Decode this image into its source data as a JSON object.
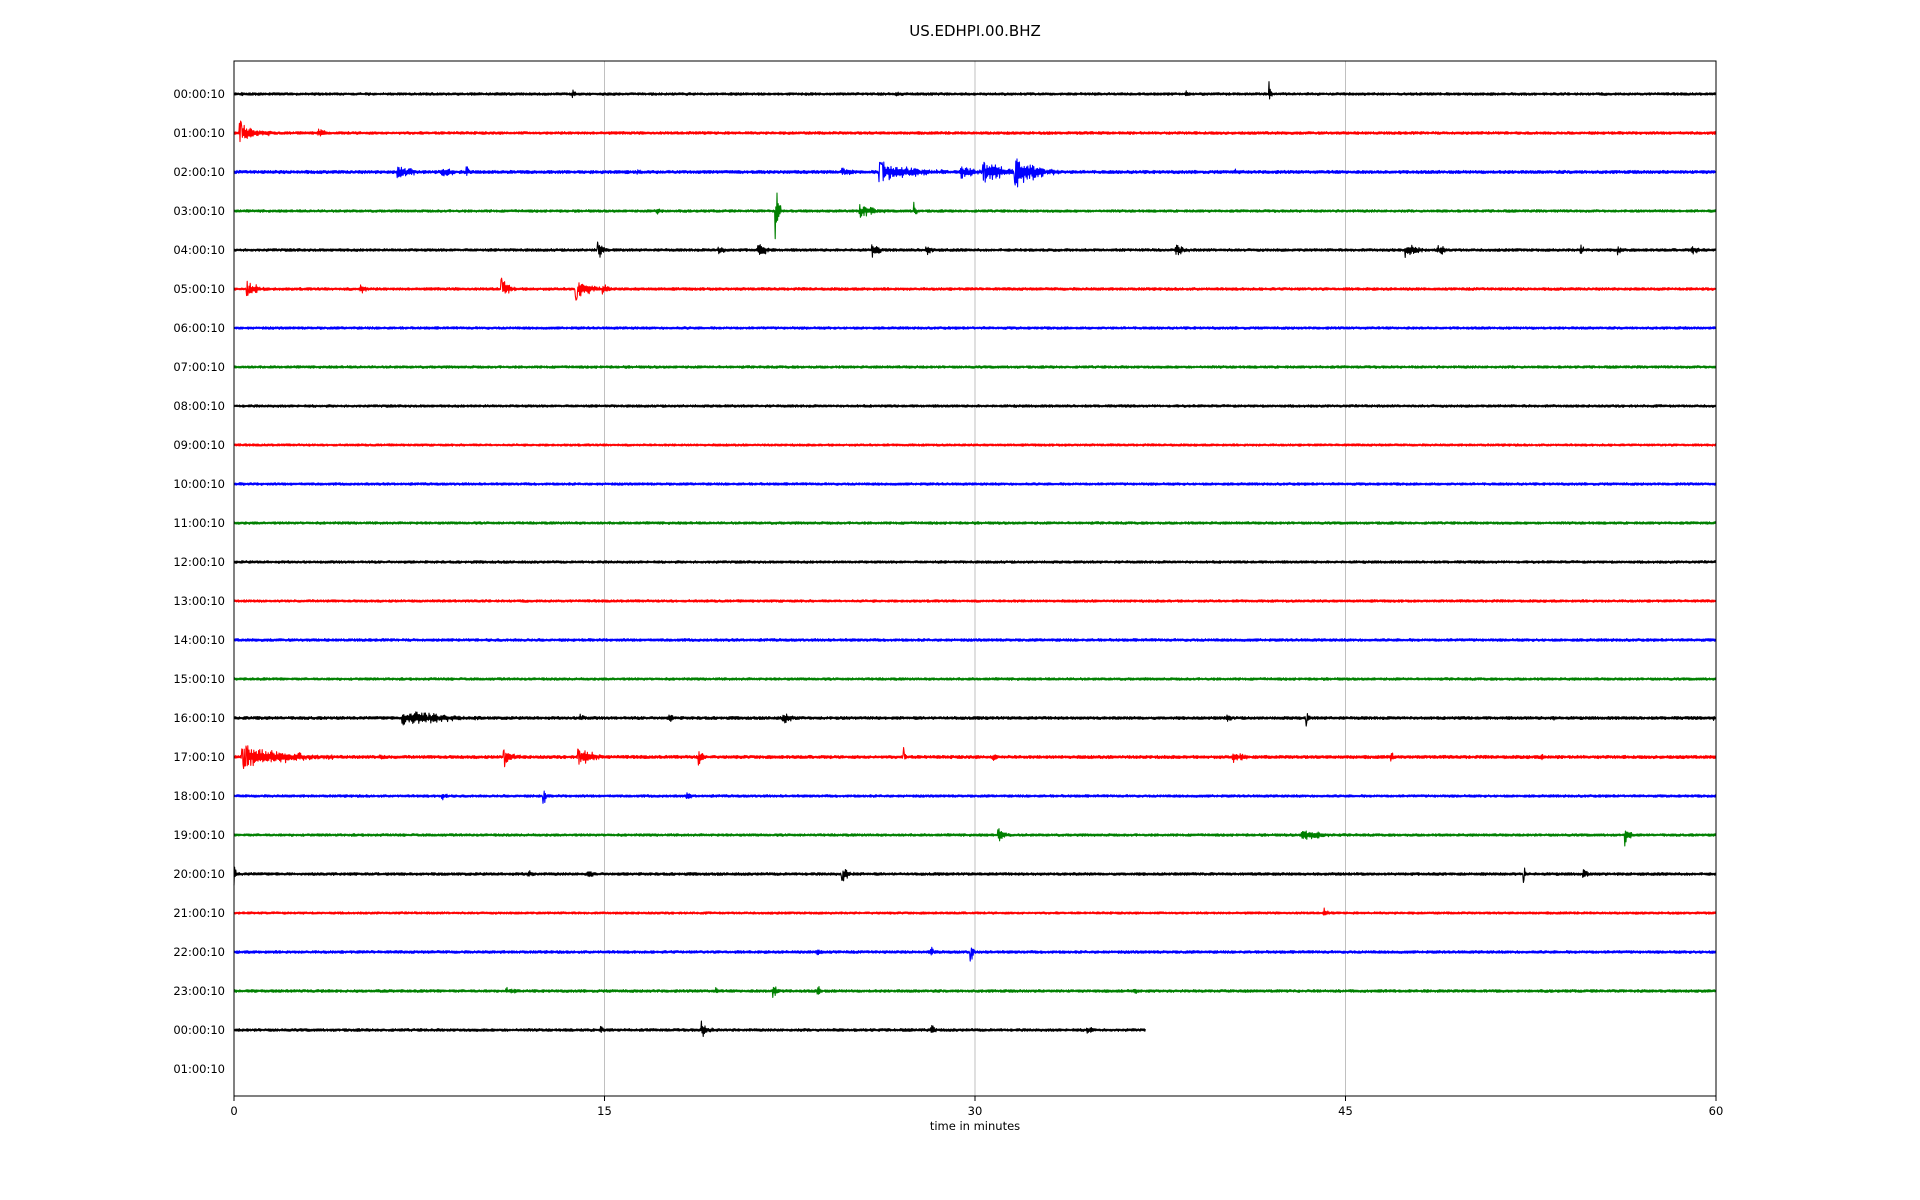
{
  "chart_data": {
    "type": "line",
    "title": "US.EDHPI.00.BHZ",
    "xlabel": "time in minutes",
    "ylabel": "",
    "xlim": [
      0,
      60
    ],
    "xticks": [
      0,
      15,
      30,
      45,
      60
    ],
    "xtick_labels": [
      "0",
      "15",
      "30",
      "45",
      "60"
    ],
    "grid": "vertical",
    "row_labels": [
      "00:00:10",
      "01:00:10",
      "02:00:10",
      "03:00:10",
      "04:00:10",
      "05:00:10",
      "06:00:10",
      "07:00:10",
      "08:00:10",
      "09:00:10",
      "10:00:10",
      "11:00:10",
      "12:00:10",
      "13:00:10",
      "14:00:10",
      "15:00:10",
      "16:00:10",
      "17:00:10",
      "18:00:10",
      "19:00:10",
      "20:00:10",
      "21:00:10",
      "22:00:10",
      "23:00:10",
      "00:00:10",
      "01:00:10"
    ],
    "color_cycle": [
      "#000000",
      "#ff0000",
      "#0000ff",
      "#008000"
    ],
    "traces": [
      {
        "row": 0,
        "end": 60,
        "noise": 1.3,
        "events": [
          [
            0.0,
            4.0,
            2.0
          ],
          [
            13.7,
            0.3,
            5
          ],
          [
            26.8,
            0.6,
            4
          ],
          [
            38.5,
            0.4,
            5
          ],
          [
            41.9,
            0.15,
            -14
          ]
        ]
      },
      {
        "row": 1,
        "end": 60,
        "noise": 1.4,
        "events": [
          [
            0.2,
            1.3,
            12
          ],
          [
            3.4,
            0.5,
            6
          ]
        ]
      },
      {
        "row": 2,
        "end": 60,
        "noise": 1.6,
        "events": [
          [
            6.6,
            1.2,
            8
          ],
          [
            8.4,
            0.8,
            8
          ],
          [
            9.4,
            0.2,
            -8
          ],
          [
            16.3,
            0.4,
            4
          ],
          [
            24.6,
            0.8,
            7
          ],
          [
            26.1,
            2.8,
            11
          ],
          [
            29.4,
            0.9,
            9
          ],
          [
            30.3,
            1.7,
            12
          ],
          [
            31.6,
            1.8,
            15
          ],
          [
            40.5,
            0.4,
            4
          ]
        ]
      },
      {
        "row": 3,
        "end": 60,
        "noise": 1.3,
        "events": [
          [
            17.1,
            0.5,
            5
          ],
          [
            21.9,
            0.25,
            30
          ],
          [
            25.3,
            1.1,
            9
          ],
          [
            27.5,
            0.15,
            -14
          ]
        ]
      },
      {
        "row": 4,
        "end": 60,
        "noise": 1.4,
        "events": [
          [
            14.7,
            0.4,
            11
          ],
          [
            19.6,
            0.5,
            7
          ],
          [
            21.2,
            0.7,
            8
          ],
          [
            25.8,
            0.6,
            8
          ],
          [
            28.0,
            0.5,
            6
          ],
          [
            38.1,
            0.6,
            8
          ],
          [
            47.4,
            1.0,
            8
          ],
          [
            48.7,
            0.6,
            7
          ],
          [
            54.5,
            0.3,
            7
          ],
          [
            56.0,
            0.4,
            6
          ],
          [
            59.0,
            0.6,
            6
          ]
        ]
      },
      {
        "row": 5,
        "end": 60,
        "noise": 1.4,
        "events": [
          [
            0.5,
            0.8,
            10
          ],
          [
            5.1,
            0.4,
            8
          ],
          [
            10.8,
            0.6,
            11
          ],
          [
            13.8,
            1.0,
            12
          ],
          [
            14.9,
            0.6,
            6
          ]
        ]
      },
      {
        "row": 6,
        "end": 60,
        "noise": 1.3,
        "events": []
      },
      {
        "row": 7,
        "end": 60,
        "noise": 1.3,
        "events": []
      },
      {
        "row": 8,
        "end": 60,
        "noise": 1.3,
        "events": []
      },
      {
        "row": 9,
        "end": 60,
        "noise": 1.2,
        "events": []
      },
      {
        "row": 10,
        "end": 60,
        "noise": 1.3,
        "events": []
      },
      {
        "row": 11,
        "end": 60,
        "noise": 1.3,
        "events": []
      },
      {
        "row": 12,
        "end": 60,
        "noise": 1.3,
        "events": []
      },
      {
        "row": 13,
        "end": 60,
        "noise": 1.3,
        "events": []
      },
      {
        "row": 14,
        "end": 60,
        "noise": 1.4,
        "events": []
      },
      {
        "row": 15,
        "end": 60,
        "noise": 1.3,
        "events": []
      },
      {
        "row": 16,
        "end": 60,
        "noise": 1.5,
        "events": [
          [
            6.8,
            3.2,
            9
          ],
          [
            14.0,
            0.3,
            7
          ],
          [
            17.6,
            0.3,
            6
          ],
          [
            22.2,
            0.7,
            7
          ],
          [
            40.2,
            0.3,
            6
          ],
          [
            43.4,
            0.2,
            -10
          ],
          [
            53.4,
            0.3,
            5
          ],
          [
            59.9,
            0.1,
            6
          ]
        ]
      },
      {
        "row": 17,
        "end": 60,
        "noise": 1.6,
        "events": [
          [
            0.3,
            3.7,
            12
          ],
          [
            5.9,
            0.5,
            5
          ],
          [
            10.9,
            0.7,
            10
          ],
          [
            13.9,
            1.3,
            10
          ],
          [
            18.8,
            0.3,
            -13
          ],
          [
            27.1,
            0.2,
            -10
          ],
          [
            30.7,
            0.3,
            6
          ],
          [
            40.4,
            0.9,
            7
          ],
          [
            46.8,
            0.4,
            6
          ],
          [
            52.9,
            0.3,
            5
          ]
        ]
      },
      {
        "row": 18,
        "end": 60,
        "noise": 1.3,
        "events": [
          [
            8.4,
            0.4,
            5
          ],
          [
            12.5,
            0.2,
            -12
          ],
          [
            18.3,
            0.3,
            7
          ]
        ]
      },
      {
        "row": 19,
        "end": 60,
        "noise": 1.3,
        "events": [
          [
            30.9,
            0.6,
            9
          ],
          [
            43.2,
            1.6,
            7
          ],
          [
            56.3,
            0.3,
            -12
          ]
        ]
      },
      {
        "row": 20,
        "end": 60,
        "noise": 1.4,
        "events": [
          [
            0.0,
            0.1,
            18
          ],
          [
            11.9,
            0.4,
            6
          ],
          [
            14.3,
            0.4,
            7
          ],
          [
            24.6,
            0.5,
            10
          ],
          [
            52.2,
            0.15,
            -13
          ],
          [
            54.6,
            0.4,
            6
          ]
        ]
      },
      {
        "row": 21,
        "end": 60,
        "noise": 1.2,
        "events": [
          [
            44.1,
            0.3,
            6
          ]
        ]
      },
      {
        "row": 22,
        "end": 60,
        "noise": 1.4,
        "events": [
          [
            23.6,
            0.3,
            8
          ],
          [
            28.2,
            0.2,
            -8
          ],
          [
            29.8,
            0.2,
            14
          ]
        ]
      },
      {
        "row": 23,
        "end": 60,
        "noise": 1.4,
        "events": [
          [
            11.0,
            1.0,
            4
          ],
          [
            19.5,
            0.2,
            -6
          ],
          [
            21.8,
            0.4,
            10
          ],
          [
            23.6,
            0.3,
            8
          ],
          [
            36.4,
            0.4,
            4
          ]
        ]
      },
      {
        "row": 24,
        "end": 36.9,
        "noise": 1.4,
        "events": [
          [
            14.8,
            0.3,
            6
          ],
          [
            18.9,
            0.5,
            10
          ],
          [
            28.2,
            0.4,
            6
          ],
          [
            34.5,
            0.4,
            7
          ]
        ]
      }
    ]
  }
}
